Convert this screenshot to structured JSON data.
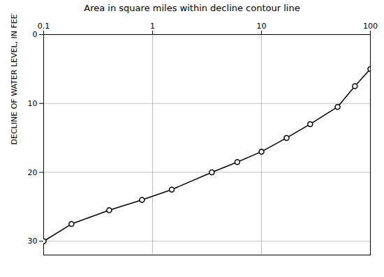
{
  "chart_data": {
    "type": "line",
    "title": "Area in square miles within decline contour line",
    "ylabel": "DECLINE OF WATER LEVEL, IN FEET",
    "x": [
      0.1,
      0.18,
      0.4,
      0.8,
      1.5,
      3.5,
      6.0,
      10.0,
      17.0,
      28.0,
      50.0,
      72.0,
      100.0
    ],
    "values": [
      30.0,
      27.5,
      25.5,
      24.0,
      22.5,
      20.0,
      18.5,
      17.0,
      15.0,
      13.0,
      10.5,
      7.5,
      5.0
    ],
    "color": "#000000",
    "marker": "circle",
    "log": "x",
    "xlim": [
      0.1,
      100
    ],
    "ylim": [
      32,
      0
    ],
    "xticks": [
      0.1,
      1,
      10,
      100
    ],
    "yticks": [
      0,
      10,
      20,
      30
    ],
    "grid": true
  }
}
